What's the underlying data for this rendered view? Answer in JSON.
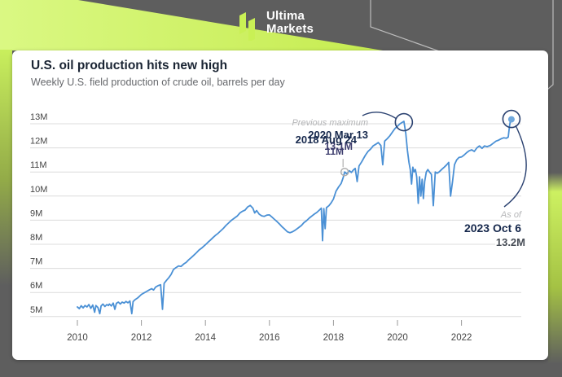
{
  "brand": {
    "line1": "Ultima",
    "line2": "Markets"
  },
  "card": {
    "title": "U.S. oil production hits new high",
    "subtitle": "Weekly U.S. field production of crude oil, barrels per day"
  },
  "annotations": {
    "previous_max": {
      "label": "Previous maximum",
      "date": "2020 Mar 13",
      "value": "13.1M"
    },
    "first_high": {
      "date": "2018 Aug 24",
      "value": "11M"
    },
    "as_of": {
      "label": "As of",
      "date": "2023 Oct 6",
      "value": "13.2M"
    }
  },
  "colors": {
    "line": "#4a90d5",
    "last_point_dot": "#6fa8dd",
    "highlight_circle": "#2a4170",
    "pointer_arc": "#2a4170",
    "marker_open_circle": "#aeaeae",
    "grid": "#dcdcdc",
    "axis_text": "#454545",
    "lime": "#cdf161",
    "frame_gray": "#5e5e5e"
  },
  "chart_data": {
    "type": "line",
    "title": "U.S. oil production hits new high",
    "subtitle": "Weekly U.S. field production of crude oil, barrels per day",
    "unit": "barrels per day (millions)",
    "xlim": [
      2009.85,
      2023.95
    ],
    "ylim": [
      5,
      13.4
    ],
    "grid": "horizontal",
    "legend": "none",
    "y_ticks": [
      13,
      12,
      11,
      10,
      9,
      8,
      7,
      6,
      5
    ],
    "x_ticks": [
      2010,
      2012,
      2014,
      2016,
      2018,
      2020,
      2022
    ],
    "markers": {
      "previous_maximum": {
        "year": 2020.2,
        "value": 13.1,
        "date": "2020 Mar 13"
      },
      "first_time_11m": {
        "year": 2018.35,
        "value": 11.0,
        "date": "2018 Aug 24"
      },
      "latest": {
        "year": 2023.56,
        "value": 13.2,
        "date": "2023 Oct 6"
      }
    },
    "series": [
      {
        "name": "Weekly U.S. field production of crude oil",
        "points": [
          [
            2010.0,
            5.4
          ],
          [
            2010.06,
            5.33
          ],
          [
            2010.12,
            5.45
          ],
          [
            2010.18,
            5.36
          ],
          [
            2010.24,
            5.46
          ],
          [
            2010.3,
            5.4
          ],
          [
            2010.36,
            5.5
          ],
          [
            2010.42,
            5.34
          ],
          [
            2010.48,
            5.48
          ],
          [
            2010.54,
            5.18
          ],
          [
            2010.58,
            5.46
          ],
          [
            2010.64,
            5.38
          ],
          [
            2010.7,
            5.12
          ],
          [
            2010.74,
            5.44
          ],
          [
            2010.8,
            5.52
          ],
          [
            2010.86,
            5.42
          ],
          [
            2010.92,
            5.5
          ],
          [
            2010.97,
            5.46
          ],
          [
            2011.0,
            5.52
          ],
          [
            2011.06,
            5.44
          ],
          [
            2011.12,
            5.56
          ],
          [
            2011.17,
            5.3
          ],
          [
            2011.22,
            5.55
          ],
          [
            2011.28,
            5.6
          ],
          [
            2011.34,
            5.52
          ],
          [
            2011.4,
            5.6
          ],
          [
            2011.46,
            5.56
          ],
          [
            2011.52,
            5.63
          ],
          [
            2011.58,
            5.57
          ],
          [
            2011.64,
            5.65
          ],
          [
            2011.7,
            5.12
          ],
          [
            2011.74,
            5.62
          ],
          [
            2011.8,
            5.7
          ],
          [
            2011.87,
            5.76
          ],
          [
            2011.94,
            5.84
          ],
          [
            2012.0,
            5.92
          ],
          [
            2012.08,
            5.98
          ],
          [
            2012.16,
            6.04
          ],
          [
            2012.24,
            6.1
          ],
          [
            2012.32,
            6.16
          ],
          [
            2012.38,
            6.1
          ],
          [
            2012.44,
            6.22
          ],
          [
            2012.52,
            6.28
          ],
          [
            2012.6,
            6.32
          ],
          [
            2012.66,
            5.3
          ],
          [
            2012.71,
            6.38
          ],
          [
            2012.78,
            6.5
          ],
          [
            2012.86,
            6.62
          ],
          [
            2012.93,
            6.75
          ],
          [
            2013.0,
            6.95
          ],
          [
            2013.08,
            7.03
          ],
          [
            2013.16,
            7.1
          ],
          [
            2013.24,
            7.08
          ],
          [
            2013.32,
            7.18
          ],
          [
            2013.4,
            7.25
          ],
          [
            2013.48,
            7.36
          ],
          [
            2013.56,
            7.45
          ],
          [
            2013.64,
            7.55
          ],
          [
            2013.72,
            7.65
          ],
          [
            2013.8,
            7.76
          ],
          [
            2013.9,
            7.86
          ],
          [
            2014.0,
            7.98
          ],
          [
            2014.08,
            8.08
          ],
          [
            2014.16,
            8.18
          ],
          [
            2014.24,
            8.28
          ],
          [
            2014.32,
            8.38
          ],
          [
            2014.4,
            8.46
          ],
          [
            2014.48,
            8.56
          ],
          [
            2014.56,
            8.66
          ],
          [
            2014.64,
            8.78
          ],
          [
            2014.72,
            8.88
          ],
          [
            2014.8,
            8.98
          ],
          [
            2014.9,
            9.08
          ],
          [
            2015.0,
            9.18
          ],
          [
            2015.08,
            9.3
          ],
          [
            2015.16,
            9.37
          ],
          [
            2015.24,
            9.42
          ],
          [
            2015.32,
            9.55
          ],
          [
            2015.4,
            9.61
          ],
          [
            2015.48,
            9.5
          ],
          [
            2015.54,
            9.3
          ],
          [
            2015.6,
            9.4
          ],
          [
            2015.68,
            9.25
          ],
          [
            2015.76,
            9.18
          ],
          [
            2015.84,
            9.16
          ],
          [
            2015.92,
            9.21
          ],
          [
            2016.0,
            9.22
          ],
          [
            2016.08,
            9.13
          ],
          [
            2016.16,
            9.03
          ],
          [
            2016.24,
            8.94
          ],
          [
            2016.32,
            8.83
          ],
          [
            2016.4,
            8.72
          ],
          [
            2016.48,
            8.62
          ],
          [
            2016.56,
            8.52
          ],
          [
            2016.64,
            8.48
          ],
          [
            2016.72,
            8.52
          ],
          [
            2016.8,
            8.58
          ],
          [
            2016.9,
            8.68
          ],
          [
            2017.0,
            8.78
          ],
          [
            2017.08,
            8.9
          ],
          [
            2017.16,
            8.98
          ],
          [
            2017.24,
            9.08
          ],
          [
            2017.32,
            9.17
          ],
          [
            2017.4,
            9.25
          ],
          [
            2017.48,
            9.32
          ],
          [
            2017.56,
            9.42
          ],
          [
            2017.62,
            9.5
          ],
          [
            2017.66,
            8.15
          ],
          [
            2017.7,
            9.48
          ],
          [
            2017.74,
            8.65
          ],
          [
            2017.78,
            9.52
          ],
          [
            2017.86,
            9.6
          ],
          [
            2017.93,
            9.72
          ],
          [
            2018.0,
            9.88
          ],
          [
            2018.08,
            10.2
          ],
          [
            2018.16,
            10.38
          ],
          [
            2018.24,
            10.52
          ],
          [
            2018.3,
            10.75
          ],
          [
            2018.35,
            11.0
          ],
          [
            2018.42,
            10.92
          ],
          [
            2018.5,
            11.05
          ],
          [
            2018.56,
            10.98
          ],
          [
            2018.62,
            11.08
          ],
          [
            2018.68,
            11.15
          ],
          [
            2018.74,
            10.6
          ],
          [
            2018.8,
            11.25
          ],
          [
            2018.88,
            11.42
          ],
          [
            2018.95,
            11.58
          ],
          [
            2019.0,
            11.7
          ],
          [
            2019.08,
            11.85
          ],
          [
            2019.16,
            11.95
          ],
          [
            2019.24,
            12.08
          ],
          [
            2019.32,
            12.15
          ],
          [
            2019.4,
            12.22
          ],
          [
            2019.48,
            12.1
          ],
          [
            2019.54,
            11.3
          ],
          [
            2019.6,
            12.28
          ],
          [
            2019.68,
            12.38
          ],
          [
            2019.76,
            12.5
          ],
          [
            2019.84,
            12.65
          ],
          [
            2019.92,
            12.8
          ],
          [
            2020.0,
            12.9
          ],
          [
            2020.08,
            13.0
          ],
          [
            2020.14,
            13.05
          ],
          [
            2020.2,
            13.1
          ],
          [
            2020.26,
            12.6
          ],
          [
            2020.31,
            11.9
          ],
          [
            2020.36,
            11.4
          ],
          [
            2020.4,
            11.1
          ],
          [
            2020.44,
            10.5
          ],
          [
            2020.48,
            11.2
          ],
          [
            2020.52,
            11.0
          ],
          [
            2020.56,
            11.1
          ],
          [
            2020.6,
            10.8
          ],
          [
            2020.65,
            9.7
          ],
          [
            2020.69,
            10.8
          ],
          [
            2020.73,
            10.0
          ],
          [
            2020.77,
            10.7
          ],
          [
            2020.81,
            9.9
          ],
          [
            2020.85,
            10.6
          ],
          [
            2020.9,
            11.0
          ],
          [
            2020.95,
            11.1
          ],
          [
            2021.0,
            11.0
          ],
          [
            2021.06,
            10.9
          ],
          [
            2021.12,
            9.6
          ],
          [
            2021.18,
            11.0
          ],
          [
            2021.24,
            10.95
          ],
          [
            2021.3,
            11.0
          ],
          [
            2021.38,
            11.1
          ],
          [
            2021.46,
            11.2
          ],
          [
            2021.54,
            11.3
          ],
          [
            2021.6,
            11.4
          ],
          [
            2021.66,
            10.0
          ],
          [
            2021.72,
            10.6
          ],
          [
            2021.78,
            11.3
          ],
          [
            2021.85,
            11.5
          ],
          [
            2021.92,
            11.6
          ],
          [
            2022.0,
            11.62
          ],
          [
            2022.08,
            11.7
          ],
          [
            2022.16,
            11.8
          ],
          [
            2022.24,
            11.88
          ],
          [
            2022.32,
            11.92
          ],
          [
            2022.4,
            11.85
          ],
          [
            2022.48,
            12.0
          ],
          [
            2022.56,
            12.08
          ],
          [
            2022.64,
            11.98
          ],
          [
            2022.72,
            12.08
          ],
          [
            2022.8,
            12.05
          ],
          [
            2022.9,
            12.1
          ],
          [
            2023.0,
            12.2
          ],
          [
            2023.08,
            12.28
          ],
          [
            2023.16,
            12.32
          ],
          [
            2023.24,
            12.38
          ],
          [
            2023.32,
            12.42
          ],
          [
            2023.4,
            12.4
          ],
          [
            2023.46,
            12.45
          ],
          [
            2023.5,
            12.9
          ],
          [
            2023.52,
            13.05
          ],
          [
            2023.54,
            13.1
          ],
          [
            2023.56,
            13.2
          ]
        ]
      }
    ]
  }
}
